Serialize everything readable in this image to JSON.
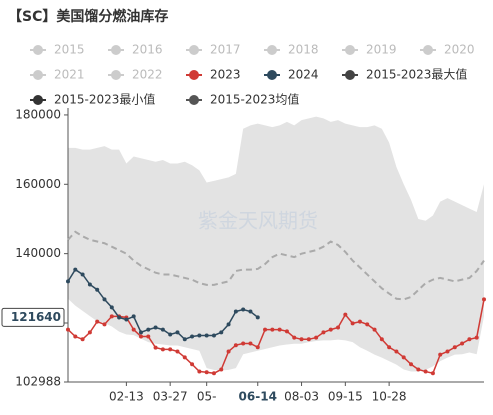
{
  "chart_data": {
    "type": "line",
    "title": "【SC】美国馏分燃油库存",
    "watermark": "紫金天风期货",
    "hidden_legend": [
      "2015",
      "2016",
      "2017",
      "2018",
      "2019",
      "2020",
      "2021",
      "2022"
    ],
    "hidden_color": "#cccccc",
    "categories": [
      null,
      null,
      null,
      null,
      null,
      null,
      null,
      null,
      "02-13",
      null,
      null,
      null,
      null,
      null,
      "03-27",
      null,
      null,
      null,
      null,
      "05-",
      null,
      null,
      null,
      null,
      null,
      null,
      "06-14",
      null,
      null,
      null,
      null,
      null,
      "08-03",
      null,
      null,
      null,
      null,
      null,
      "09-15",
      null,
      null,
      null,
      null,
      null,
      "10-28",
      null,
      null,
      null,
      null,
      null,
      null,
      null,
      null,
      null,
      null,
      null,
      null,
      null
    ],
    "series": [
      {
        "name": "2023",
        "color": "#d03a35",
        "style": "line",
        "values": [
          118100,
          116100,
          115300,
          117300,
          120400,
          119600,
          121900,
          121900,
          121600,
          118100,
          116100,
          116100,
          112900,
          112400,
          112400,
          111800,
          110100,
          108100,
          106000,
          105800,
          105500,
          106600,
          111800,
          113600,
          114100,
          114100,
          113000,
          118100,
          118100,
          118100,
          117600,
          115800,
          115300,
          115300,
          115800,
          117300,
          118100,
          118700,
          122400,
          119900,
          120400,
          119600,
          118100,
          115300,
          113000,
          111800,
          110100,
          108100,
          106600,
          106000,
          105500,
          110900,
          111800,
          113000,
          114100,
          115300,
          115800,
          126800
        ]
      },
      {
        "name": "2024",
        "color": "#2e4a5e",
        "style": "line",
        "values": [
          132000,
          135400,
          134000,
          131100,
          129600,
          126800,
          124500,
          121600,
          121000,
          121900,
          117300,
          118100,
          118700,
          118100,
          116700,
          117300,
          115300,
          116100,
          116400,
          116400,
          116400,
          117300,
          119600,
          123300,
          123900,
          123300,
          121640,
          null,
          null,
          null,
          null,
          null,
          null,
          null,
          null,
          null,
          null,
          null,
          null,
          null,
          null,
          null,
          null,
          null,
          null,
          null,
          null,
          null,
          null,
          null,
          null,
          null,
          null,
          null,
          null,
          null,
          null,
          null
        ]
      },
      {
        "name": "2015-2023最大值",
        "color": "#444444",
        "style": "area-top",
        "values": [
          170500,
          170500,
          170000,
          170000,
          170500,
          171000,
          170000,
          170000,
          166000,
          168000,
          167500,
          167000,
          166500,
          167000,
          166000,
          166000,
          166500,
          165500,
          164000,
          160500,
          161000,
          161500,
          162000,
          163000,
          176000,
          177000,
          177500,
          177000,
          176500,
          177000,
          178000,
          177000,
          178500,
          179000,
          179500,
          179000,
          178000,
          178500,
          177500,
          177000,
          176500,
          176500,
          177000,
          176000,
          172000,
          165000,
          160000,
          155500,
          150000,
          149500,
          151000,
          155000,
          156000,
          155000,
          154000,
          153000,
          152000,
          160000
        ]
      },
      {
        "name": "2015-2023最小值",
        "color": "#333333",
        "style": "area-bottom",
        "values": [
          127000,
          125000,
          123500,
          122000,
          120500,
          120000,
          119000,
          117500,
          116700,
          116500,
          115500,
          114500,
          114000,
          113800,
          113500,
          113500,
          113000,
          112500,
          112000,
          107000,
          106500,
          106300,
          106500,
          107000,
          111000,
          111500,
          112000,
          112500,
          113000,
          113500,
          113800,
          114000,
          114000,
          114500,
          114800,
          115000,
          115000,
          115200,
          115000,
          114500,
          113000,
          112000,
          110900,
          110000,
          109000,
          108000,
          106600,
          106000,
          106000,
          106500,
          107500,
          109000,
          110000,
          110900,
          111000,
          111500,
          111000,
          122000
        ]
      },
      {
        "name": "2015-2023均值",
        "color": "#555555",
        "style": "dashed",
        "values": [
          144000,
          146300,
          145000,
          144000,
          143500,
          143000,
          142000,
          141000,
          140000,
          138000,
          136500,
          135500,
          134500,
          134000,
          134000,
          133500,
          133000,
          132500,
          131500,
          131000,
          131000,
          131500,
          132000,
          135000,
          135400,
          135400,
          135600,
          137000,
          139000,
          140000,
          139500,
          139000,
          140000,
          140500,
          141000,
          142000,
          143500,
          142500,
          140500,
          138000,
          136000,
          134000,
          132000,
          130000,
          128500,
          127000,
          126800,
          127500,
          129500,
          131500,
          132500,
          133000,
          132500,
          132000,
          132500,
          133000,
          135000,
          138000
        ]
      }
    ],
    "area_color": "#e3e3e3",
    "mean_line_color": "#aaaaaa",
    "ylim": [
      102988,
      182000
    ],
    "yticks": [
      102988,
      120000,
      140000,
      160000,
      180000
    ],
    "crosshair": {
      "index": 26,
      "value": 121640
    }
  }
}
